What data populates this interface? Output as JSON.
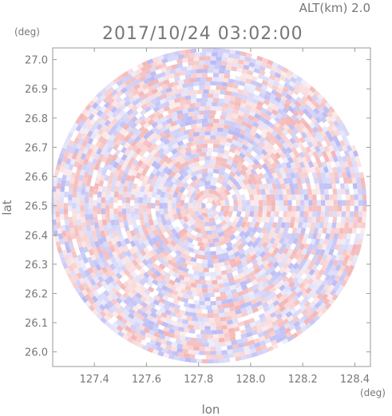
{
  "header": {
    "altitude_label": "ALT(km)  2.0",
    "timestamp": "2017/10/24 03:02:00"
  },
  "chart_data": {
    "type": "heatmap",
    "title": "2017/10/24 03:02:00",
    "subtitle": "ALT(km)  2.0",
    "xlabel": "lon",
    "ylabel": "lat",
    "x_unit": "(deg)",
    "y_unit": "(deg)",
    "xlim": [
      127.24,
      128.46
    ],
    "ylim": [
      25.95,
      27.04
    ],
    "x_ticks": [
      127.4,
      127.6,
      127.8,
      128.0,
      128.2,
      128.4
    ],
    "x_tick_labels": [
      "127.4",
      "127.6",
      "127.8",
      "128.0",
      "128.2",
      "128.4"
    ],
    "y_ticks": [
      26.0,
      26.1,
      26.2,
      26.3,
      26.4,
      26.5,
      26.6,
      26.7,
      26.8,
      26.9,
      27.0
    ],
    "y_tick_labels": [
      "26.0",
      "26.1",
      "26.2",
      "26.3",
      "26.4",
      "26.5",
      "26.6",
      "26.7",
      "26.8",
      "26.9",
      "27.0"
    ],
    "radar_center": {
      "lon": 127.84,
      "lat": 26.5
    },
    "radar_extent_lat": 0.54,
    "colormap": {
      "positive": "#f4b6b6",
      "negative": "#babaf4",
      "zero": "#ffffff"
    }
  }
}
